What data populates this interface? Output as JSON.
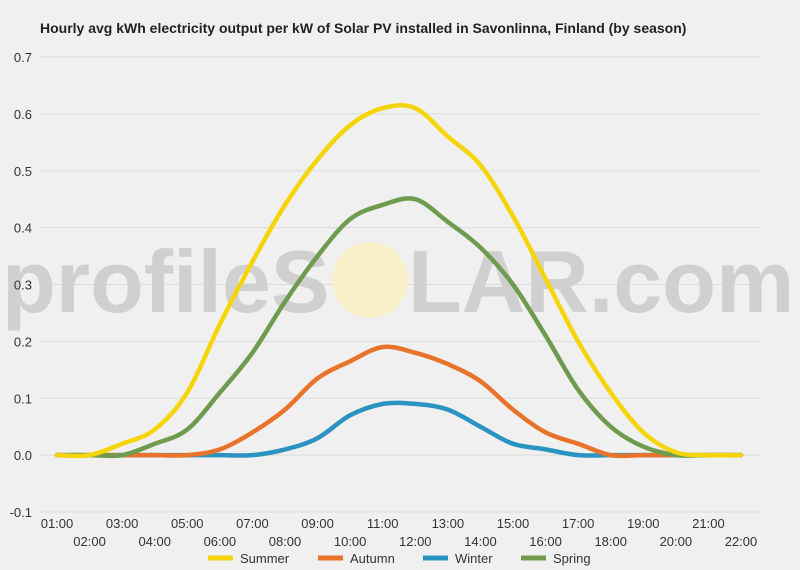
{
  "chart_data": {
    "type": "line",
    "title": "Hourly avg kWh electricity output per kW of Solar PV installed in Savonlinna, Finland (by season)",
    "xlabel": "",
    "ylabel": "",
    "ylim": [
      -0.1,
      0.7
    ],
    "yticks": [
      "-0.1",
      "0.0",
      "0.1",
      "0.2",
      "0.3",
      "0.4",
      "0.5",
      "0.6",
      "0.7"
    ],
    "categories": [
      "01:00",
      "02:00",
      "03:00",
      "04:00",
      "05:00",
      "06:00",
      "07:00",
      "08:00",
      "09:00",
      "10:00",
      "11:00",
      "12:00",
      "13:00",
      "14:00",
      "15:00",
      "16:00",
      "17:00",
      "18:00",
      "19:00",
      "20:00",
      "21:00",
      "22:00"
    ],
    "grid": true,
    "legend_position": "bottom",
    "series": [
      {
        "name": "Summer",
        "color": "#f5d50a",
        "values": [
          0.0,
          0.0,
          0.02,
          0.045,
          0.11,
          0.23,
          0.34,
          0.44,
          0.52,
          0.58,
          0.61,
          0.61,
          0.56,
          0.51,
          0.42,
          0.31,
          0.2,
          0.11,
          0.04,
          0.005,
          0.0,
          0.0
        ]
      },
      {
        "name": "Autumn",
        "color": "#e8732a",
        "values": [
          0.0,
          0.0,
          0.0,
          0.0,
          0.0,
          0.01,
          0.04,
          0.08,
          0.135,
          0.165,
          0.19,
          0.18,
          0.16,
          0.13,
          0.08,
          0.04,
          0.02,
          0.0,
          0.0,
          0.0,
          0.0,
          0.0
        ]
      },
      {
        "name": "Winter",
        "color": "#2b93c2",
        "values": [
          0.0,
          0.0,
          0.0,
          0.0,
          0.0,
          0.0,
          0.0,
          0.01,
          0.03,
          0.07,
          0.09,
          0.09,
          0.08,
          0.05,
          0.02,
          0.01,
          0.0,
          0.0,
          0.0,
          0.0,
          0.0,
          0.0
        ]
      },
      {
        "name": "Spring",
        "color": "#6e9b4d",
        "values": [
          0.0,
          0.0,
          0.0,
          0.02,
          0.045,
          0.11,
          0.18,
          0.27,
          0.35,
          0.415,
          0.44,
          0.45,
          0.41,
          0.365,
          0.3,
          0.21,
          0.115,
          0.05,
          0.015,
          0.0,
          0.0,
          0.0
        ]
      }
    ]
  },
  "watermark": {
    "left": "profileS",
    "right": "LAR.com"
  }
}
